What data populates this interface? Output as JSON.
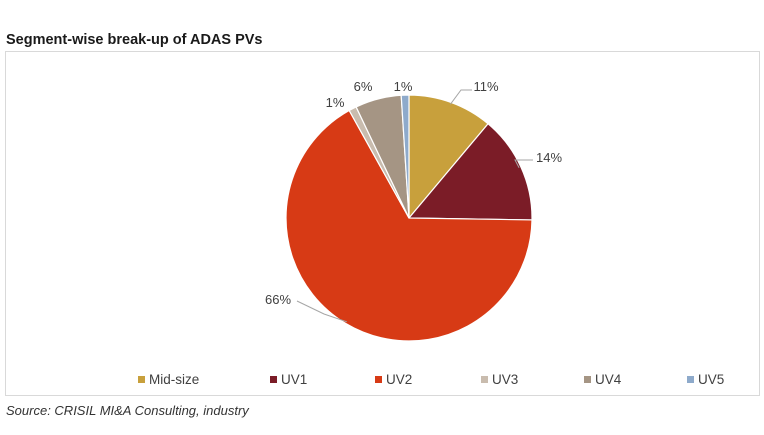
{
  "chart_data": {
    "type": "pie",
    "title": "Segment-wise break-up of ADAS PVs",
    "source": "Source: CRISIL MI&A Consulting, industry",
    "legend_position": "bottom",
    "slices": [
      {
        "name": "Mid-size",
        "value": 11,
        "label": "11%",
        "color": "#c8a03c"
      },
      {
        "name": "UV1",
        "value": 14,
        "label": "14%",
        "color": "#7b1c27"
      },
      {
        "name": "UV2",
        "value": 66,
        "label": "66%",
        "color": "#d73a15"
      },
      {
        "name": "UV3",
        "value": 1,
        "label": "1%",
        "color": "#c9bcae"
      },
      {
        "name": "UV4",
        "value": 6,
        "label": "6%",
        "color": "#a59584"
      },
      {
        "name": "UV5",
        "value": 1,
        "label": "1%",
        "color": "#8eaacb"
      }
    ]
  }
}
